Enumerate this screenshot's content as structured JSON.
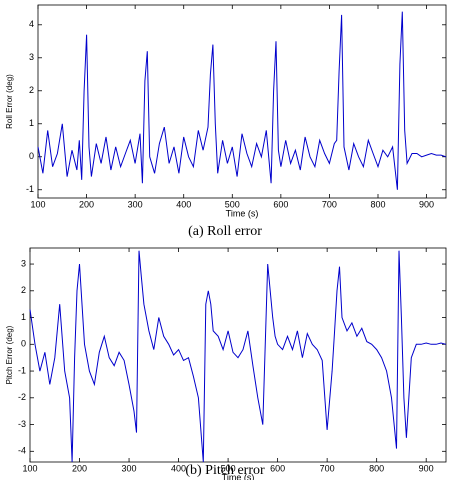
{
  "chart_data": [
    {
      "type": "line",
      "xlabel": "Time (s)",
      "ylabel": "Roll Error (deg)",
      "caption": "(a)  Roll error",
      "color": "#0000cc",
      "x": [
        100,
        110,
        120,
        130,
        140,
        150,
        160,
        170,
        180,
        185,
        190,
        195,
        200,
        205,
        210,
        220,
        230,
        240,
        250,
        260,
        270,
        280,
        290,
        300,
        310,
        315,
        320,
        325,
        330,
        340,
        350,
        360,
        370,
        380,
        390,
        400,
        410,
        420,
        430,
        440,
        450,
        455,
        460,
        465,
        470,
        480,
        490,
        500,
        510,
        520,
        530,
        540,
        550,
        560,
        570,
        580,
        585,
        590,
        595,
        600,
        610,
        620,
        630,
        640,
        650,
        660,
        670,
        680,
        690,
        700,
        710,
        715,
        720,
        725,
        730,
        740,
        750,
        760,
        770,
        780,
        790,
        800,
        810,
        820,
        830,
        840,
        845,
        850,
        855,
        860,
        870,
        880,
        890,
        900,
        910,
        920,
        930,
        940
      ],
      "values": [
        0.3,
        -0.5,
        0.8,
        -0.3,
        0.1,
        1.0,
        -0.6,
        0.2,
        -0.4,
        0.5,
        -0.7,
        2.0,
        3.7,
        0.3,
        -0.6,
        0.4,
        -0.2,
        0.6,
        -0.4,
        0.3,
        -0.3,
        0.1,
        0.5,
        -0.2,
        0.7,
        -0.8,
        2.3,
        3.2,
        0.0,
        -0.5,
        0.4,
        0.9,
        -0.2,
        0.3,
        -0.5,
        0.6,
        0.0,
        -0.3,
        0.8,
        0.2,
        0.9,
        2.5,
        3.4,
        1.0,
        -0.5,
        0.5,
        -0.2,
        0.3,
        -0.6,
        0.7,
        0.1,
        -0.3,
        0.4,
        0.0,
        0.8,
        -0.8,
        2.0,
        3.5,
        0.2,
        -0.3,
        0.5,
        -0.2,
        0.2,
        -0.4,
        0.6,
        0.0,
        -0.3,
        0.5,
        0.1,
        -0.2,
        0.4,
        0.5,
        2.6,
        4.3,
        0.3,
        -0.4,
        0.4,
        0.0,
        -0.3,
        0.5,
        0.1,
        -0.3,
        0.2,
        0.0,
        0.3,
        -1.0,
        2.8,
        4.4,
        0.8,
        -0.2,
        0.1,
        0.1,
        0.0,
        0.05,
        0.1,
        0.05,
        0.05,
        0.0
      ],
      "xlim": [
        100,
        940
      ],
      "xticks": [
        100,
        200,
        300,
        400,
        500,
        600,
        700,
        800,
        900
      ],
      "ylim": [
        -1.25,
        4.6
      ],
      "yticks": [
        -1,
        0,
        1,
        2,
        3,
        4
      ]
    },
    {
      "type": "line",
      "xlabel": "Time (s)",
      "ylabel": "Pitch Error (deg)",
      "caption": "(b)  Pitch error",
      "color": "#0000cc",
      "x": [
        100,
        110,
        120,
        130,
        140,
        150,
        160,
        170,
        180,
        185,
        190,
        195,
        200,
        205,
        210,
        220,
        230,
        240,
        250,
        260,
        270,
        280,
        290,
        300,
        310,
        315,
        320,
        325,
        330,
        340,
        350,
        360,
        370,
        380,
        390,
        400,
        410,
        420,
        430,
        440,
        450,
        455,
        460,
        465,
        470,
        480,
        490,
        500,
        510,
        520,
        530,
        540,
        550,
        560,
        570,
        580,
        585,
        590,
        595,
        600,
        610,
        620,
        630,
        640,
        650,
        660,
        670,
        680,
        690,
        700,
        710,
        715,
        720,
        725,
        730,
        740,
        750,
        760,
        770,
        780,
        790,
        800,
        810,
        820,
        830,
        840,
        845,
        850,
        855,
        860,
        870,
        880,
        890,
        900,
        910,
        920,
        930,
        940
      ],
      "values": [
        1.3,
        0.0,
        -1.0,
        -0.3,
        -1.5,
        -0.5,
        1.5,
        -1.0,
        -2.0,
        -4.4,
        -0.5,
        2.0,
        3.0,
        1.5,
        0.0,
        -1.0,
        -1.5,
        -0.3,
        0.3,
        -0.5,
        -0.8,
        -0.3,
        -0.6,
        -1.5,
        -2.5,
        -3.3,
        3.5,
        2.5,
        1.5,
        0.5,
        -0.2,
        1.0,
        0.3,
        0.0,
        -0.4,
        -0.2,
        -0.6,
        -0.5,
        -1.2,
        -2.0,
        -4.4,
        1.5,
        2.0,
        1.5,
        0.5,
        0.3,
        -0.2,
        0.5,
        -0.3,
        -0.5,
        -0.2,
        0.5,
        -0.8,
        -2.0,
        -3.0,
        3.0,
        2.0,
        1.0,
        0.3,
        0.0,
        -0.2,
        0.3,
        -0.2,
        0.5,
        -0.5,
        0.4,
        0.0,
        -0.2,
        -0.6,
        -3.2,
        -1.0,
        0.5,
        2.0,
        2.9,
        1.0,
        0.5,
        0.8,
        0.3,
        0.6,
        0.1,
        0.0,
        -0.2,
        -0.5,
        -1.0,
        -2.0,
        -3.9,
        3.5,
        1.0,
        -2.0,
        -3.5,
        -0.5,
        0.0,
        0.0,
        0.05,
        0.0,
        0.0,
        0.05,
        0.0
      ],
      "xlim": [
        100,
        940
      ],
      "xticks": [
        100,
        200,
        300,
        400,
        500,
        600,
        700,
        800,
        900
      ],
      "ylim": [
        -4.4,
        3.6
      ],
      "yticks": [
        -4,
        -3,
        -2,
        -1,
        0,
        1,
        2,
        3
      ]
    }
  ]
}
